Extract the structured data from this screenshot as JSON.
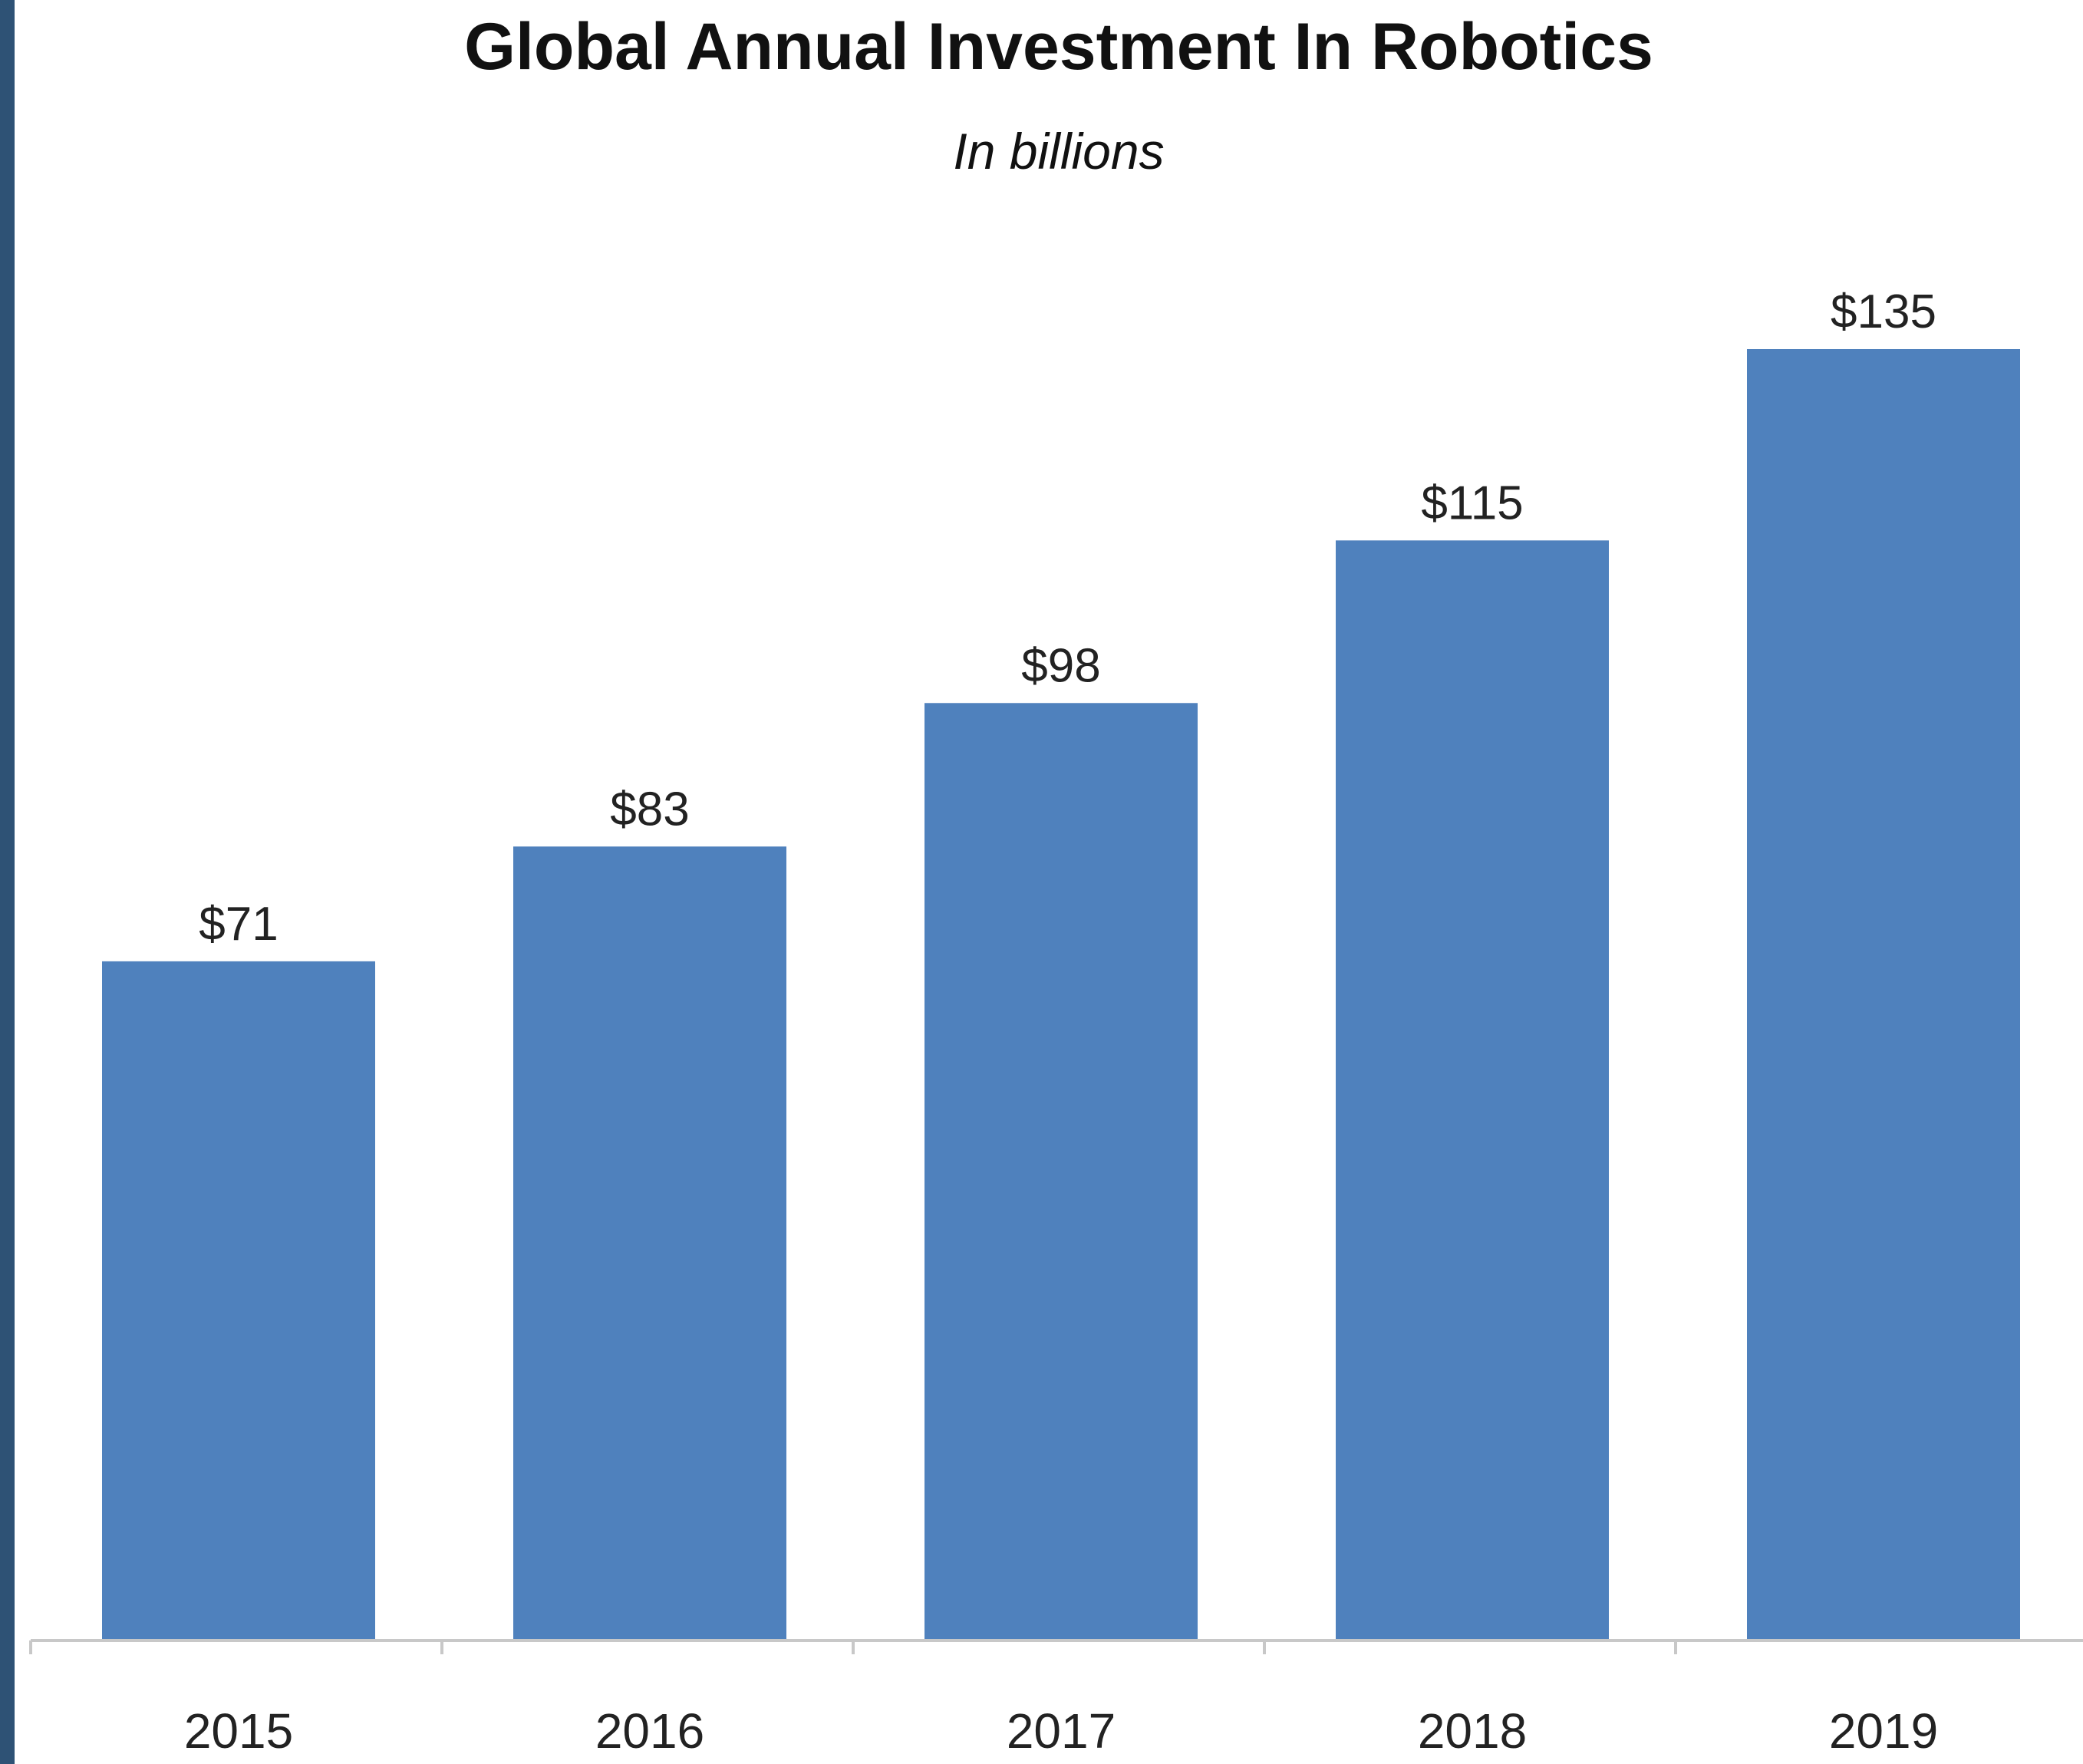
{
  "chart_data": {
    "type": "bar",
    "title": "Global Annual Investment In Robotics",
    "subtitle": "In billions",
    "categories": [
      "2015",
      "2016",
      "2017",
      "2018",
      "2019"
    ],
    "values": [
      71,
      83,
      98,
      115,
      135
    ],
    "data_labels": [
      "$71",
      "$83",
      "$98",
      "$115",
      "$135"
    ],
    "xlabel": "",
    "ylabel": "",
    "ylim": [
      0,
      135
    ],
    "grid": false,
    "legend": "none",
    "colors": {
      "bar": "#4f81bd",
      "axis": "#c8c8c8",
      "frame_stripe": "#2e5275"
    }
  }
}
